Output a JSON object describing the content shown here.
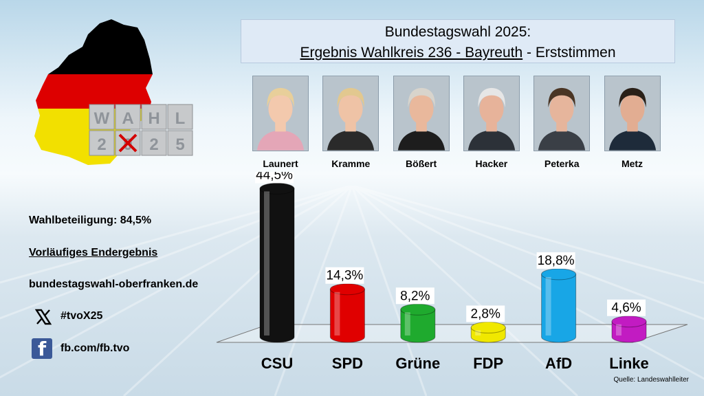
{
  "title": {
    "line1": "Bundestagswahl 2025:",
    "line2_underlined": "Ergebnis Wahlkreis 236 - Bayreuth",
    "line2_rest": " - Erststimmen"
  },
  "logo": {
    "letters_top": [
      "W",
      "A",
      "H",
      "L"
    ],
    "letters_bottom": [
      "2",
      "0",
      "2",
      "5"
    ]
  },
  "candidates": [
    {
      "name": "Launert",
      "hair": "#e8cf9a",
      "skin": "#f3c9ad",
      "shirt": "#e4a6b7"
    },
    {
      "name": "Kramme",
      "hair": "#e2c88f",
      "skin": "#efc3a6",
      "shirt": "#2a2a2a"
    },
    {
      "name": "Bößert",
      "hair": "#d8d4cc",
      "skin": "#e9b89c",
      "shirt": "#1d1d1d"
    },
    {
      "name": "Hacker",
      "hair": "#e6e6e6",
      "skin": "#e7b39a",
      "shirt": "#2c3138"
    },
    {
      "name": "Peterka",
      "hair": "#4a3524",
      "skin": "#e6b59c",
      "shirt": "#3a3f46"
    },
    {
      "name": "Metz",
      "hair": "#2a2018",
      "skin": "#e2ad92",
      "shirt": "#1e2b3a"
    }
  ],
  "info": {
    "turnout": "Wahlbeteiligung: 84,5%",
    "status": "Vorläufiges Endergebnis",
    "website": "bundestagswahl-oberfranken.de",
    "hashtag": "#tvoX25",
    "facebook": "fb.com/fb.tvo",
    "x_icon": "x-logo-icon",
    "fb_icon": "facebook-icon"
  },
  "chart_data": {
    "type": "bar",
    "categories": [
      "CSU",
      "SPD",
      "Grüne",
      "FDP",
      "AfD",
      "Linke"
    ],
    "values": [
      44.5,
      14.3,
      8.2,
      2.8,
      18.8,
      4.6
    ],
    "labels": [
      "44,5%",
      "14,3%",
      "8,2%",
      "2,8%",
      "18,8%",
      "4,6%"
    ],
    "colors": [
      "#111111",
      "#e00000",
      "#1faa2e",
      "#f0e800",
      "#18a6e6",
      "#c21bc2"
    ],
    "ylim": [
      0,
      45
    ],
    "grid": false,
    "legend": "none"
  },
  "source": "Quelle: Landeswahlleiter"
}
